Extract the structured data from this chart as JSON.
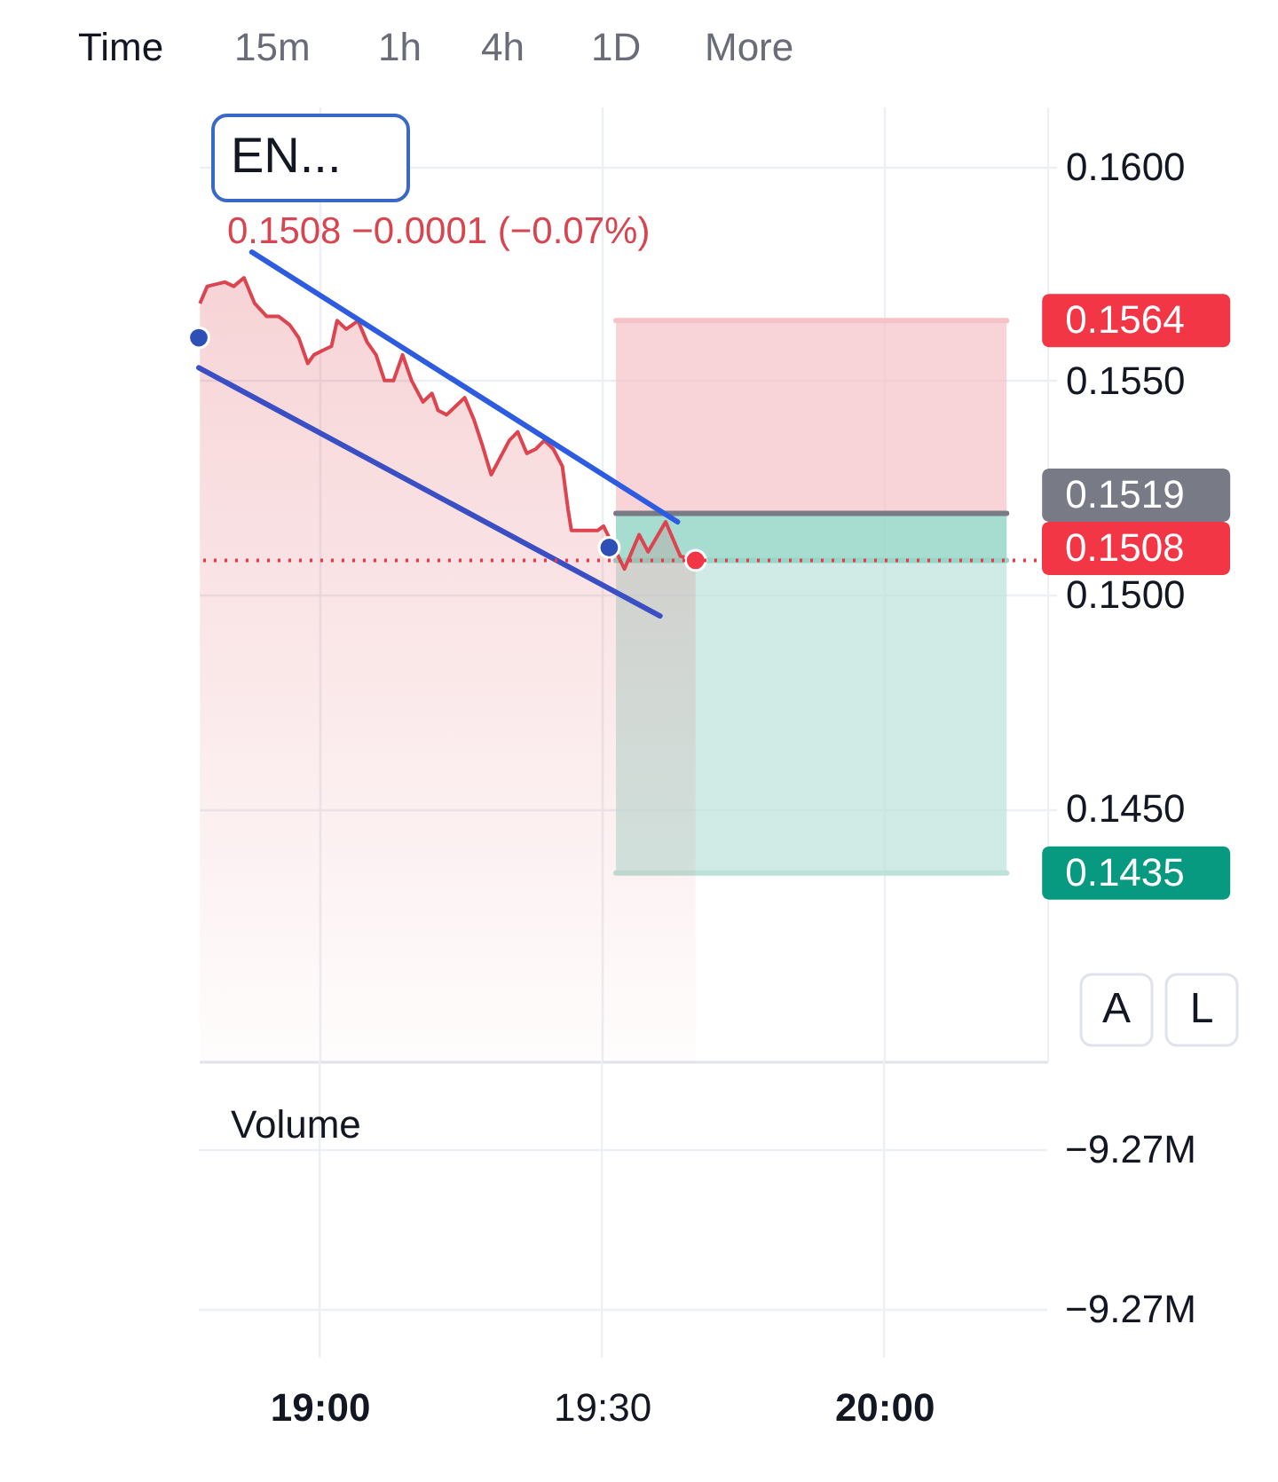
{
  "chart_data": {
    "type": "area",
    "title": "EN...",
    "subtitle": "0.1508 −0.0001 (−0.07%)",
    "xlim": [
      18.786,
      20.289
    ],
    "xticks": [
      {
        "value": 19,
        "label": "19:00"
      },
      {
        "value": 19.5,
        "label": "19:30"
      },
      {
        "value": 20,
        "label": "20:00"
      }
    ],
    "y2lim": [
      0.1391,
      0.1614
    ],
    "y2ticks": [
      {
        "value": 0.145,
        "label": "0.1450"
      },
      {
        "value": 0.15,
        "label": "0.1500"
      },
      {
        "value": 0.155,
        "label": "0.1550"
      },
      {
        "value": 0.16,
        "label": "0.1600"
      }
    ],
    "grid": true,
    "series": [
      {
        "type": "line",
        "axis": "y2",
        "color": "#f5c2c7",
        "x": [
          19.525,
          20.217
        ],
        "values": [
          0.1564,
          0.1564
        ],
        "lower": [
          0.1519,
          0.1519
        ],
        "upper": [
          0.1564,
          0.1564
        ],
        "value_labels": [
          null,
          "0.1564"
        ]
      },
      {
        "type": "line",
        "axis": "y2",
        "color": "#bce2da",
        "x": [
          19.525,
          20.217
        ],
        "values": [
          0.1435,
          0.1435
        ],
        "lower": [
          0.1435,
          0.1435
        ],
        "upper": [
          0.1519,
          0.1519
        ],
        "value_labels": [
          null,
          "0.1435"
        ]
      },
      {
        "type": "line",
        "axis": "y2",
        "color": "#95d6c8",
        "x": [
          19.525,
          20.217
        ],
        "values": [
          0.1508,
          0.1508
        ],
        "lower": [
          0.1508,
          0.1508
        ],
        "upper": [
          0.1519,
          0.1519
        ]
      },
      {
        "type": "line",
        "axis": "y2",
        "color": "#787b86",
        "x": [
          19.525,
          20.217
        ],
        "values": [
          0.1519,
          0.1519
        ],
        "value_labels": [
          null,
          "0.1519"
        ]
      },
      {
        "axis": "y2",
        "color": "#dc4550",
        "x": [
          18.788,
          18.801,
          18.832,
          18.848,
          18.866,
          18.885,
          18.906,
          18.927,
          18.947,
          18.963,
          18.979,
          18.99,
          19.005,
          19.021,
          19.031,
          19.047,
          19.058,
          19.068,
          19.084,
          19.1,
          19.115,
          19.131,
          19.147,
          19.163,
          19.183,
          19.199,
          19.21,
          19.225,
          19.241,
          19.257,
          19.273,
          19.288,
          19.304,
          19.32,
          19.336,
          19.351,
          19.367,
          19.383,
          19.398,
          19.414,
          19.43,
          19.44,
          19.446,
          19.493,
          19.503,
          19.54,
          19.566,
          19.582,
          19.613,
          19.639,
          19.666
        ],
        "values": [
          0.1568,
          0.1572,
          0.1573,
          0.1572,
          0.1574,
          0.1568,
          0.1565,
          0.1565,
          0.1563,
          0.156,
          0.1554,
          0.1556,
          0.1557,
          0.1558,
          0.1564,
          0.1562,
          0.1563,
          0.1564,
          0.1559,
          0.1556,
          0.155,
          0.155,
          0.1556,
          0.155,
          0.1545,
          0.1547,
          0.1543,
          0.1542,
          0.1544,
          0.1546,
          0.1541,
          0.1535,
          0.1528,
          0.1532,
          0.1536,
          0.1538,
          0.1533,
          0.1534,
          0.1536,
          0.1534,
          0.153,
          0.152,
          0.1515,
          0.1515,
          0.1516,
          0.1506,
          0.1514,
          0.151,
          0.1517,
          0.1509,
          0.1508
        ]
      },
      {
        "type": "line",
        "axis": "y2",
        "color": "#2e5ce0",
        "x": [
          18.88,
          19.634
        ],
        "values": [
          0.158,
          0.1517
        ]
      },
      {
        "type": "line",
        "axis": "y2",
        "color": "#3b4fc4",
        "x": [
          18.786,
          19.603
        ],
        "values": [
          0.1553,
          0.1495
        ]
      },
      {
        "type": "scatter",
        "axis": "y2",
        "color": "#2e4fb6",
        "marker": "circle",
        "x": [
          18.786,
          19.513
        ],
        "values": [
          0.156,
          0.1511
        ]
      },
      {
        "type": "scatter",
        "axis": "y2",
        "color": "#f23645",
        "marker": "circle",
        "x": [
          19.666
        ],
        "values": [
          0.1508
        ]
      }
    ],
    "ref_lines": [
      {
        "axis": "y2",
        "value": 0.1508,
        "label": "0.1508",
        "color": "#f23645",
        "line_style": "dotted"
      }
    ],
    "annotations": [
      "Time",
      "15m",
      "1h",
      "4h",
      "1D",
      "More",
      "A",
      "L",
      "Volume",
      "−9.27M",
      "−9.27M"
    ]
  }
}
